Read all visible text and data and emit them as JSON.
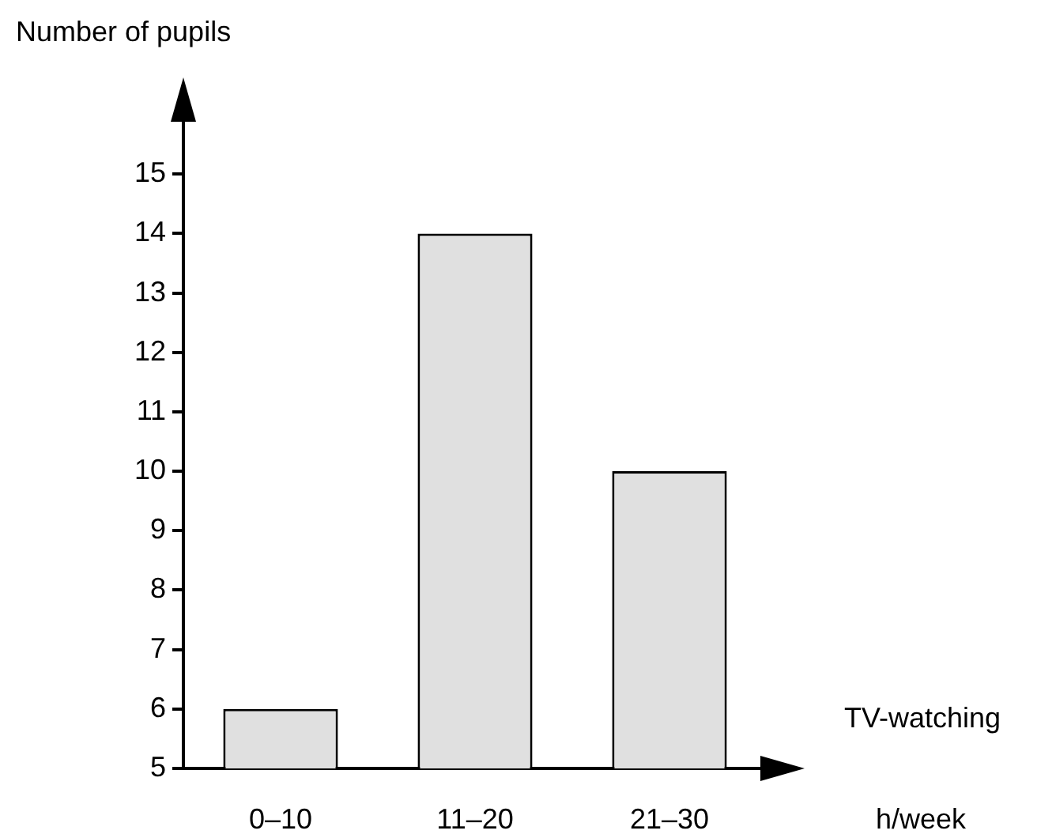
{
  "chart_data": {
    "type": "bar",
    "categories": [
      "0–10",
      "11–20",
      "21–30"
    ],
    "values": [
      6,
      14,
      10
    ],
    "color": "#e0e0e0",
    "ylim": [
      5,
      16.2
    ],
    "yticks": [
      5,
      6,
      7,
      8,
      9,
      10,
      11,
      12,
      13,
      14,
      15
    ],
    "ylabel": "Number of pupils",
    "xlabel": "TV-watching",
    "annotations": [
      "h/week"
    ],
    "grid": false,
    "legend": false
  }
}
